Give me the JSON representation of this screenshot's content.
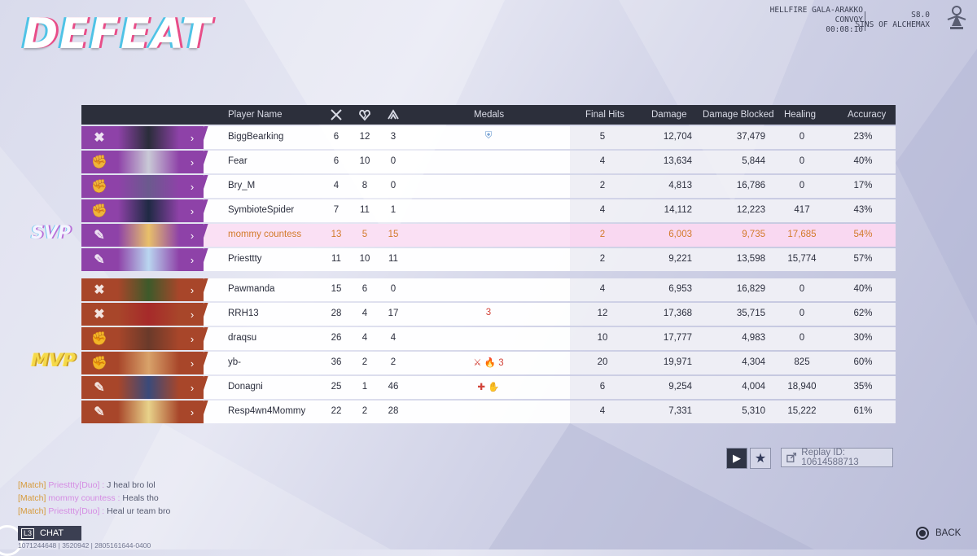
{
  "screen": {
    "result_title": "DEFEAT",
    "map_name": "HELLFIRE GALA-ARAKKO",
    "mode": "CONVOY",
    "duration": "00:08:10",
    "season": "S8.0",
    "season_name": "SINS OF ALCHEMAX"
  },
  "columns": {
    "player_name": "Player Name",
    "medals": "Medals",
    "final_hits": "Final Hits",
    "damage": "Damage",
    "damage_blocked": "Damage Blocked",
    "healing": "Healing",
    "accuracy": "Accuracy"
  },
  "badges": {
    "svp": "SVP",
    "mvp": "MVP"
  },
  "team1_color": "#8e42a8",
  "team2_color": "#a8462a",
  "team1": [
    {
      "name": "BiggBearking",
      "k": "6",
      "d": "12",
      "a": "3",
      "medals": "⛨",
      "fh": "5",
      "dmg": "12,704",
      "blk": "37,479",
      "heal": "0",
      "acc": "23%"
    },
    {
      "name": "Fear",
      "k": "6",
      "d": "10",
      "a": "0",
      "medals": "",
      "fh": "4",
      "dmg": "13,634",
      "blk": "5,844",
      "heal": "0",
      "acc": "40%"
    },
    {
      "name": "Bry_M",
      "k": "4",
      "d": "8",
      "a": "0",
      "medals": "",
      "fh": "2",
      "dmg": "4,813",
      "blk": "16,786",
      "heal": "0",
      "acc": "17%"
    },
    {
      "name": "SymbioteSpider",
      "k": "7",
      "d": "11",
      "a": "1",
      "medals": "",
      "fh": "4",
      "dmg": "14,112",
      "blk": "12,223",
      "heal": "417",
      "acc": "43%"
    },
    {
      "name": "mommy countess",
      "k": "13",
      "d": "5",
      "a": "15",
      "medals": "",
      "fh": "2",
      "dmg": "6,003",
      "blk": "9,735",
      "heal": "17,685",
      "acc": "54%"
    },
    {
      "name": "Priesttty",
      "k": "11",
      "d": "10",
      "a": "11",
      "medals": "",
      "fh": "2",
      "dmg": "9,221",
      "blk": "13,598",
      "heal": "15,774",
      "acc": "57%"
    }
  ],
  "team2": [
    {
      "name": "Pawmanda",
      "k": "15",
      "d": "6",
      "a": "0",
      "medals": "",
      "fh": "4",
      "dmg": "6,953",
      "blk": "16,829",
      "heal": "0",
      "acc": "40%"
    },
    {
      "name": "RRH13",
      "k": "28",
      "d": "4",
      "a": "17",
      "medals": "3",
      "fh": "12",
      "dmg": "17,368",
      "blk": "35,715",
      "heal": "0",
      "acc": "62%"
    },
    {
      "name": "draqsu",
      "k": "26",
      "d": "4",
      "a": "4",
      "medals": "",
      "fh": "10",
      "dmg": "17,777",
      "blk": "4,983",
      "heal": "0",
      "acc": "30%"
    },
    {
      "name": "yb-",
      "k": "36",
      "d": "2",
      "a": "2",
      "medals": "⚔ 🔥 3",
      "fh": "20",
      "dmg": "19,971",
      "blk": "4,304",
      "heal": "825",
      "acc": "60%"
    },
    {
      "name": "Donagni",
      "k": "25",
      "d": "1",
      "a": "46",
      "medals": "✚ ✋",
      "fh": "6",
      "dmg": "9,254",
      "blk": "4,004",
      "heal": "18,940",
      "acc": "35%"
    },
    {
      "name": "Resp4wn4Mommy",
      "k": "22",
      "d": "2",
      "a": "28",
      "medals": "",
      "fh": "4",
      "dmg": "7,331",
      "blk": "5,310",
      "heal": "15,222",
      "acc": "61%"
    }
  ],
  "replay": {
    "id_label": "Replay ID: 10614588713"
  },
  "chat": [
    {
      "tag": "[Match]",
      "who": "Priesttty[Duo] :",
      "msg": "J heal bro lol"
    },
    {
      "tag": "[Match]",
      "who": "mommy countess :",
      "msg": "Heals tho"
    },
    {
      "tag": "[Match]",
      "who": "Priesttty[Duo] :",
      "msg": "Heal ur team bro"
    }
  ],
  "chat_button": {
    "key": "L3",
    "label": "CHAT"
  },
  "footer_ids": "1071244648 | 3520942 | 2805161644-0400",
  "back_label": "BACK"
}
